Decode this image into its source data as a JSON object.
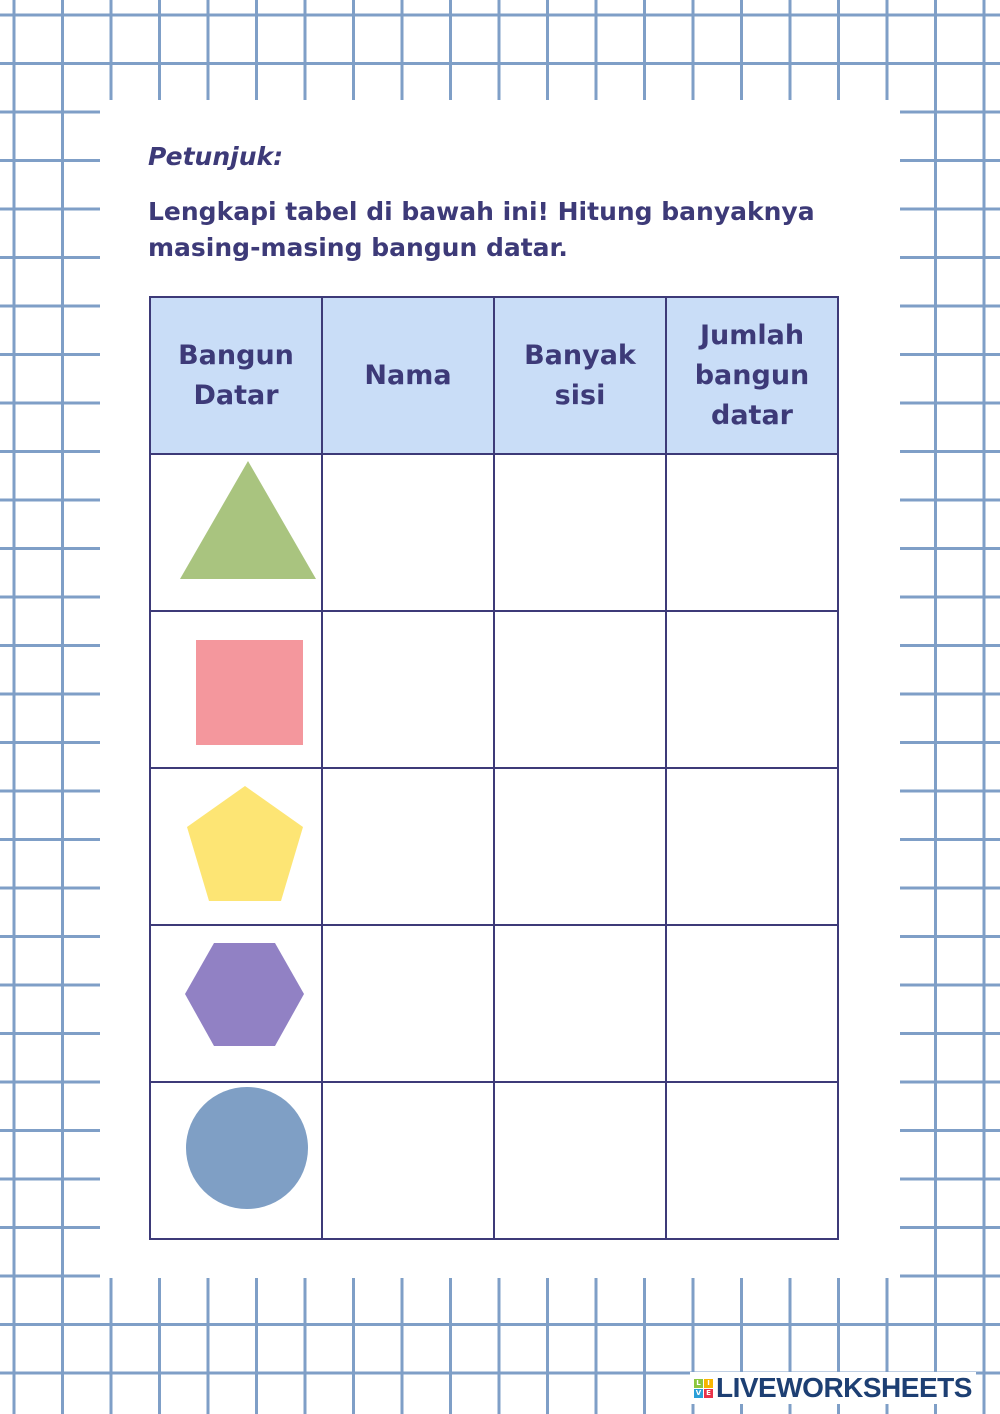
{
  "header": {
    "title": "Petunjuk:",
    "instruction": "Lengkapi tabel di bawah ini! Hitung banyaknya masing-masing bangun datar."
  },
  "table": {
    "columns": [
      "Bangun Datar",
      "Nama",
      "Banyak sisi",
      "Jumlah bangun datar"
    ],
    "rows": [
      {
        "shape": "triangle",
        "color": "#a9c47f",
        "nama": "",
        "banyak_sisi": "",
        "jumlah": ""
      },
      {
        "shape": "square",
        "color": "#f4979d",
        "nama": "",
        "banyak_sisi": "",
        "jumlah": ""
      },
      {
        "shape": "pentagon",
        "color": "#fde574",
        "nama": "",
        "banyak_sisi": "",
        "jumlah": ""
      },
      {
        "shape": "hexagon",
        "color": "#9181c4",
        "nama": "",
        "banyak_sisi": "",
        "jumlah": ""
      },
      {
        "shape": "circle",
        "color": "#7f9fc5",
        "nama": "",
        "banyak_sisi": "",
        "jumlah": ""
      }
    ]
  },
  "colors": {
    "grid": "#7f9fc7",
    "text": "#3d3a78",
    "header_bg": "#c9ddf7"
  },
  "logo": {
    "text": "LIVEWORKSHEETS"
  }
}
